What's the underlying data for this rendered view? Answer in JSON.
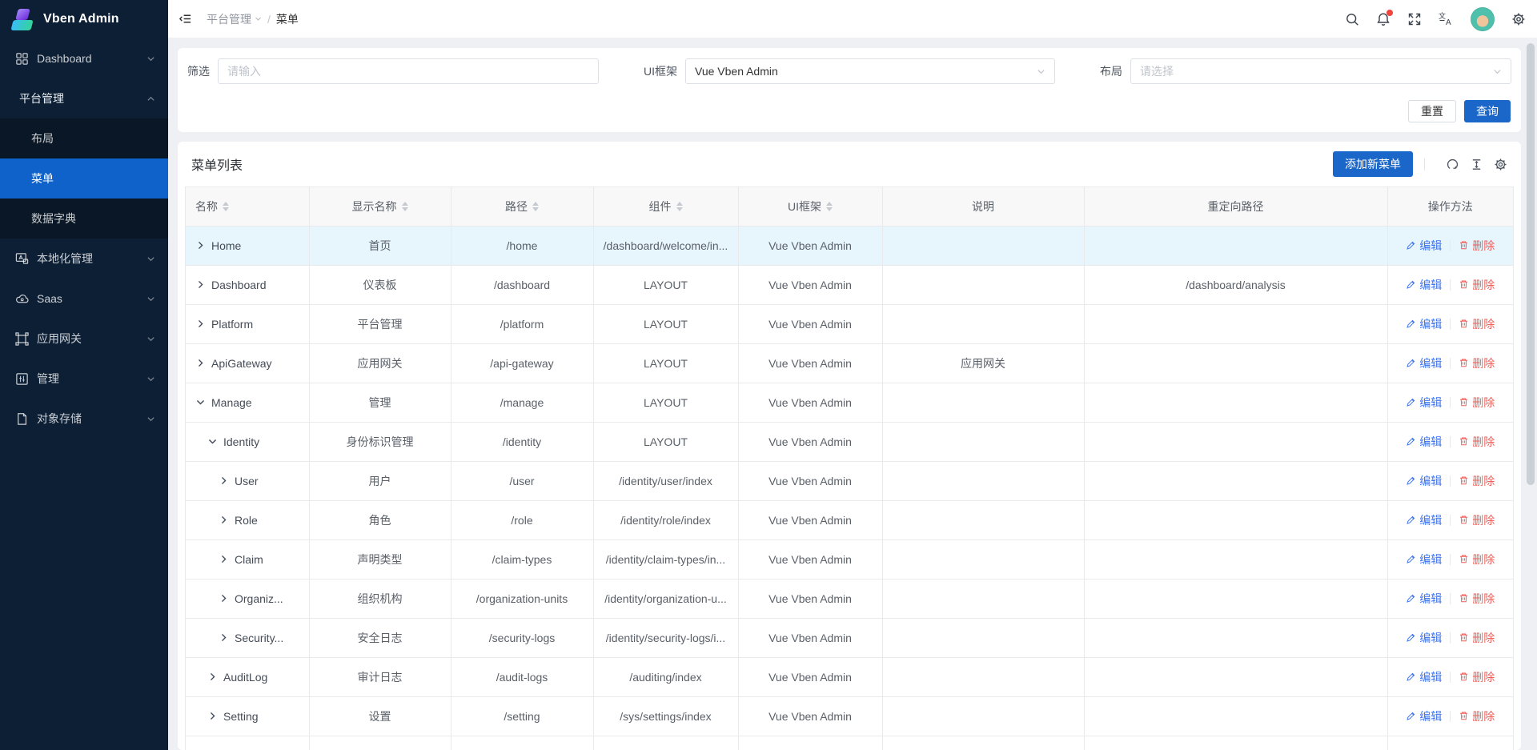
{
  "sidebar": {
    "logo_text": "Vben Admin",
    "dashboard": {
      "label": "Dashboard"
    },
    "platform": {
      "label": "平台管理",
      "children": [
        {
          "label": "布局",
          "active": false
        },
        {
          "label": "菜单",
          "active": true
        },
        {
          "label": "数据字典",
          "active": false
        }
      ]
    },
    "others": [
      {
        "label": "本地化管理",
        "icon": "localization-icon"
      },
      {
        "label": "Saas",
        "icon": "cloud-icon"
      },
      {
        "label": "应用网关",
        "icon": "gateway-icon"
      },
      {
        "label": "管理",
        "icon": "manage-icon"
      },
      {
        "label": "对象存储",
        "icon": "storage-file-icon"
      }
    ]
  },
  "header": {
    "breadcrumb_parent": "平台管理",
    "breadcrumb_separator": "/",
    "breadcrumb_current": "菜单"
  },
  "filter": {
    "fields": [
      {
        "label": "筛选",
        "placeholder": "请输入",
        "type": "input"
      },
      {
        "label": "UI框架",
        "value": "Vue Vben Admin",
        "type": "select"
      },
      {
        "label": "布局",
        "placeholder": "请选择",
        "type": "select"
      }
    ],
    "reset_label": "重置",
    "submit_label": "查询"
  },
  "table": {
    "title": "菜单列表",
    "add_button_label": "添加新菜单",
    "edit_label": "编辑",
    "delete_label": "删除",
    "columns": [
      {
        "label": "名称",
        "sortable": true
      },
      {
        "label": "显示名称",
        "sortable": true
      },
      {
        "label": "路径",
        "sortable": true
      },
      {
        "label": "组件",
        "sortable": true
      },
      {
        "label": "UI框架",
        "sortable": true
      },
      {
        "label": "说明",
        "sortable": false
      },
      {
        "label": "重定向路径",
        "sortable": false
      },
      {
        "label": "操作方法",
        "sortable": false
      }
    ],
    "rows": [
      {
        "name": "Home",
        "level": 0,
        "toggle": "collapsed",
        "display": "首页",
        "path": "/home",
        "component": "/dashboard/welcome/in...",
        "ui": "Vue Vben Admin",
        "description": "",
        "redirect": "",
        "highlighted": true
      },
      {
        "name": "Dashboard",
        "level": 0,
        "toggle": "collapsed",
        "display": "仪表板",
        "path": "/dashboard",
        "component": "LAYOUT",
        "ui": "Vue Vben Admin",
        "description": "",
        "redirect": "/dashboard/analysis",
        "highlighted": false
      },
      {
        "name": "Platform",
        "level": 0,
        "toggle": "collapsed",
        "display": "平台管理",
        "path": "/platform",
        "component": "LAYOUT",
        "ui": "Vue Vben Admin",
        "description": "",
        "redirect": "",
        "highlighted": false
      },
      {
        "name": "ApiGateway",
        "level": 0,
        "toggle": "collapsed",
        "display": "应用网关",
        "path": "/api-gateway",
        "component": "LAYOUT",
        "ui": "Vue Vben Admin",
        "description": "应用网关",
        "redirect": "",
        "highlighted": false
      },
      {
        "name": "Manage",
        "level": 0,
        "toggle": "expanded",
        "display": "管理",
        "path": "/manage",
        "component": "LAYOUT",
        "ui": "Vue Vben Admin",
        "description": "",
        "redirect": "",
        "highlighted": false
      },
      {
        "name": "Identity",
        "level": 1,
        "toggle": "expanded",
        "display": "身份标识管理",
        "path": "/identity",
        "component": "LAYOUT",
        "ui": "Vue Vben Admin",
        "description": "",
        "redirect": "",
        "highlighted": false
      },
      {
        "name": "User",
        "level": 2,
        "toggle": "collapsed",
        "display": "用户",
        "path": "/user",
        "component": "/identity/user/index",
        "ui": "Vue Vben Admin",
        "description": "",
        "redirect": "",
        "highlighted": false
      },
      {
        "name": "Role",
        "level": 2,
        "toggle": "collapsed",
        "display": "角色",
        "path": "/role",
        "component": "/identity/role/index",
        "ui": "Vue Vben Admin",
        "description": "",
        "redirect": "",
        "highlighted": false
      },
      {
        "name": "Claim",
        "level": 2,
        "toggle": "collapsed",
        "display": "声明类型",
        "path": "/claim-types",
        "component": "/identity/claim-types/in...",
        "ui": "Vue Vben Admin",
        "description": "",
        "redirect": "",
        "highlighted": false
      },
      {
        "name": "Organiz...",
        "level": 2,
        "toggle": "collapsed",
        "display": "组织机构",
        "path": "/organization-units",
        "component": "/identity/organization-u...",
        "ui": "Vue Vben Admin",
        "description": "",
        "redirect": "",
        "highlighted": false
      },
      {
        "name": "Security...",
        "level": 2,
        "toggle": "collapsed",
        "display": "安全日志",
        "path": "/security-logs",
        "component": "/identity/security-logs/i...",
        "ui": "Vue Vben Admin",
        "description": "",
        "redirect": "",
        "highlighted": false
      },
      {
        "name": "AuditLog",
        "level": 1,
        "toggle": "collapsed",
        "display": "审计日志",
        "path": "/audit-logs",
        "component": "/auditing/index",
        "ui": "Vue Vben Admin",
        "description": "",
        "redirect": "",
        "highlighted": false
      },
      {
        "name": "Setting",
        "level": 1,
        "toggle": "collapsed",
        "display": "设置",
        "path": "/setting",
        "component": "/sys/settings/index",
        "ui": "Vue Vben Admin",
        "description": "",
        "redirect": "",
        "highlighted": false
      }
    ]
  },
  "colors": {
    "primary": "#1a66c9",
    "sidebar_bg": "#0c1f35",
    "sidebar_active": "#0e62c9",
    "row_highlight": "#e7f5fd",
    "edit_link": "#3e74ee",
    "delete_link": "#ee5f5a",
    "notification_dot": "#f0453c"
  }
}
